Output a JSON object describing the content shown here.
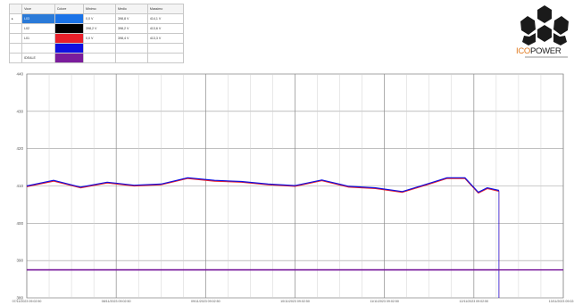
{
  "legend": {
    "headers": [
      "Voce",
      "Colore",
      "Minimo",
      "Medio",
      "Massimo"
    ],
    "rows": [
      {
        "name": "L03",
        "color": "#1a73e8",
        "min": "0,0 V",
        "avg": "398,8 V",
        "max": "414,1 V",
        "selected": true
      },
      {
        "name": "L02",
        "color": "#000000",
        "min": "398,2 V",
        "avg": "398,2 V",
        "max": "413,6 V",
        "selected": false
      },
      {
        "name": "L01",
        "color": "#e8202a",
        "min": "0,0 V",
        "avg": "398,4 V",
        "max": "413,3 V",
        "selected": false
      },
      {
        "name": "",
        "color": "#1010e0",
        "min": "",
        "avg": "",
        "max": "",
        "selected": false
      },
      {
        "name": "IDEALE",
        "color": "#7a1c9c",
        "min": "",
        "avg": "",
        "max": "",
        "selected": false
      }
    ],
    "row_marker": "▸"
  },
  "logo": {
    "text_main": "ICO",
    "text_accent": "POWER"
  },
  "chart_data": {
    "type": "line",
    "ylim": [
      380,
      440
    ],
    "yticks": [
      380,
      390,
      400,
      410,
      420,
      430,
      440
    ],
    "ytick_labels": [
      "380",
      "390",
      "400",
      "410",
      "420",
      "430",
      "440"
    ],
    "xtick_labels": [
      "07/11/2023 09:02:50",
      "08/11/2023 09:02:50",
      "09/11/2023 09:02:50",
      "10/11/2023 09:02:50",
      "11/11/2023 09:02:50",
      "12/11/2023 09:02:50",
      "13/11/2023 09:02:50"
    ],
    "x_days": [
      0,
      0.3,
      0.6,
      0.9,
      1.2,
      1.5,
      1.8,
      2.1,
      2.4,
      2.7,
      3.0,
      3.3,
      3.6,
      3.9,
      4.2,
      4.5,
      4.7,
      4.9,
      5.05,
      5.15,
      5.28
    ],
    "series": [
      {
        "color": "#e8202a",
        "values": [
          409.8,
          411.3,
          409.5,
          410.8,
          410.0,
          410.3,
          412.0,
          411.3,
          411.0,
          410.3,
          409.9,
          411.4,
          409.7,
          409.3,
          408.3,
          410.5,
          412.0,
          412.0,
          408.1,
          409.3,
          408.6
        ]
      },
      {
        "color": "#1010e0",
        "values": [
          410.0,
          411.5,
          409.7,
          411.0,
          410.2,
          410.5,
          412.2,
          411.5,
          411.2,
          410.5,
          410.1,
          411.6,
          409.9,
          409.5,
          408.5,
          410.7,
          412.2,
          412.2,
          408.3,
          409.5,
          408.8
        ]
      },
      {
        "color": "#7a1c9c",
        "values": [
          387.5,
          387.5,
          387.5,
          387.5,
          387.5,
          387.5,
          387.5,
          387.5,
          387.5,
          387.5,
          387.5,
          387.5,
          387.5,
          387.5,
          387.5,
          387.5,
          387.5,
          387.5,
          387.5,
          387.5,
          387.5
        ]
      }
    ],
    "grid": true
  }
}
